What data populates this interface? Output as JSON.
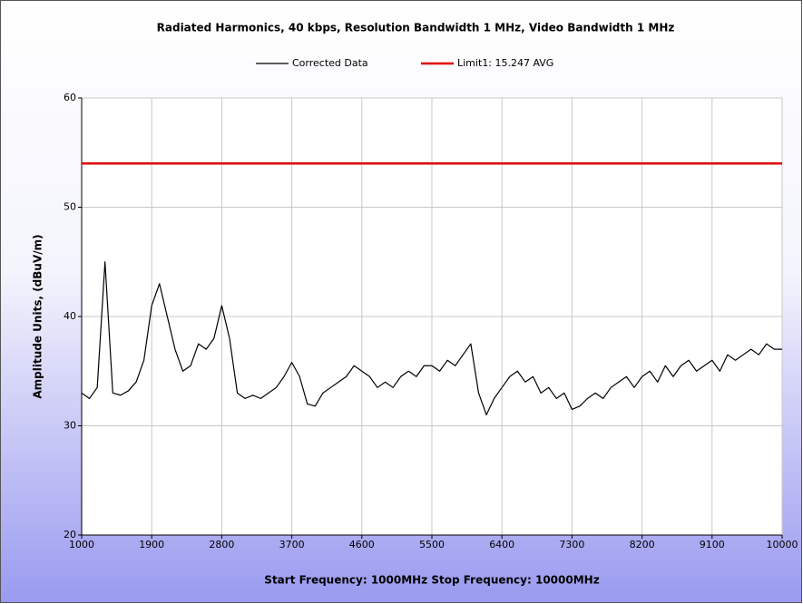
{
  "chart_data": {
    "type": "line",
    "title": "Radiated Harmonics, 40 kbps, Resolution Bandwidth 1 MHz, Video Bandwidth 1 MHz",
    "xlabel": "Start Frequency: 1000MHz    Stop Frequency: 10000MHz",
    "ylabel": "Amplitude Units, (dBuV/m)",
    "xlim": [
      1000,
      10000
    ],
    "ylim": [
      20,
      60
    ],
    "xticks": [
      1000,
      1900,
      2800,
      3700,
      4600,
      5500,
      6400,
      7300,
      8200,
      9100,
      10000
    ],
    "yticks": [
      20,
      30,
      40,
      50,
      60
    ],
    "grid": true,
    "legend": "top",
    "series": [
      {
        "name": "Corrected Data",
        "color": "#000000",
        "x": [
          1000,
          1100,
          1200,
          1300,
          1400,
          1500,
          1600,
          1700,
          1800,
          1900,
          2000,
          2100,
          2200,
          2300,
          2400,
          2500,
          2600,
          2700,
          2800,
          2900,
          3000,
          3100,
          3200,
          3300,
          3400,
          3500,
          3600,
          3700,
          3800,
          3900,
          4000,
          4100,
          4200,
          4300,
          4400,
          4500,
          4600,
          4700,
          4800,
          4900,
          5000,
          5100,
          5200,
          5300,
          5400,
          5500,
          5600,
          5700,
          5800,
          5900,
          6000,
          6100,
          6200,
          6300,
          6400,
          6500,
          6600,
          6700,
          6800,
          6900,
          7000,
          7100,
          7200,
          7300,
          7400,
          7500,
          7600,
          7700,
          7800,
          7900,
          8000,
          8100,
          8200,
          8300,
          8400,
          8500,
          8600,
          8700,
          8800,
          8900,
          9000,
          9100,
          9200,
          9300,
          9400,
          9500,
          9600,
          9700,
          9800,
          9900,
          10000
        ],
        "values": [
          33,
          32.5,
          33.5,
          45,
          33,
          32.8,
          33.2,
          34,
          36,
          41,
          43,
          40,
          37,
          35,
          35.5,
          37.5,
          37,
          38,
          41,
          38,
          33,
          32.5,
          32.8,
          32.5,
          33,
          33.5,
          34.5,
          35.8,
          34.5,
          32,
          31.8,
          33,
          33.5,
          34,
          34.5,
          35.5,
          35,
          34.5,
          33.5,
          34,
          33.5,
          34.5,
          35,
          34.5,
          35.5,
          35.5,
          35,
          36,
          35.5,
          36.5,
          37.5,
          33,
          31,
          32.5,
          33.5,
          34.5,
          35,
          34,
          34.5,
          33,
          33.5,
          32.5,
          33,
          31.5,
          31.8,
          32.5,
          33,
          32.5,
          33.5,
          34,
          34.5,
          33.5,
          34.5,
          35,
          34,
          35.5,
          34.5,
          35.5,
          36,
          35,
          35.5,
          36,
          35,
          36.5,
          36,
          36.5,
          37,
          36.5,
          37.5,
          37,
          37
        ]
      },
      {
        "name": "Limit1: 15.247 AVG",
        "color": "#e00000",
        "x": [
          1000,
          10000
        ],
        "values": [
          54,
          54
        ]
      }
    ]
  }
}
